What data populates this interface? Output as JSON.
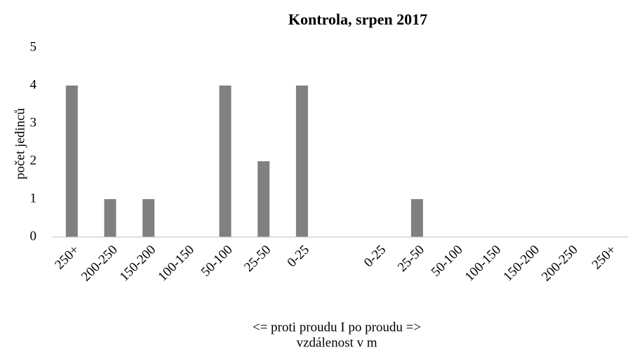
{
  "chart_data": {
    "type": "bar",
    "title": "Kontrola, srpen 2017",
    "ylabel": "počet jedinců",
    "xlabel": [
      "<= proti proudu I po proudu =>",
      "vzdálenost v m"
    ],
    "categories": [
      "250+",
      "200-250",
      "150-200",
      "100-150",
      "50-100",
      "25-50",
      "0-25",
      null,
      "0-25",
      "25-50",
      "50-100",
      "100-150",
      "150-200",
      "200-250",
      "250+"
    ],
    "values": [
      4,
      1,
      1,
      0,
      4,
      2,
      4,
      null,
      0,
      1,
      0,
      0,
      0,
      0,
      0
    ],
    "color": "#808080",
    "ylim": [
      0,
      5
    ],
    "yticks": [
      0,
      1,
      2,
      3,
      4,
      5
    ],
    "grid": false
  }
}
